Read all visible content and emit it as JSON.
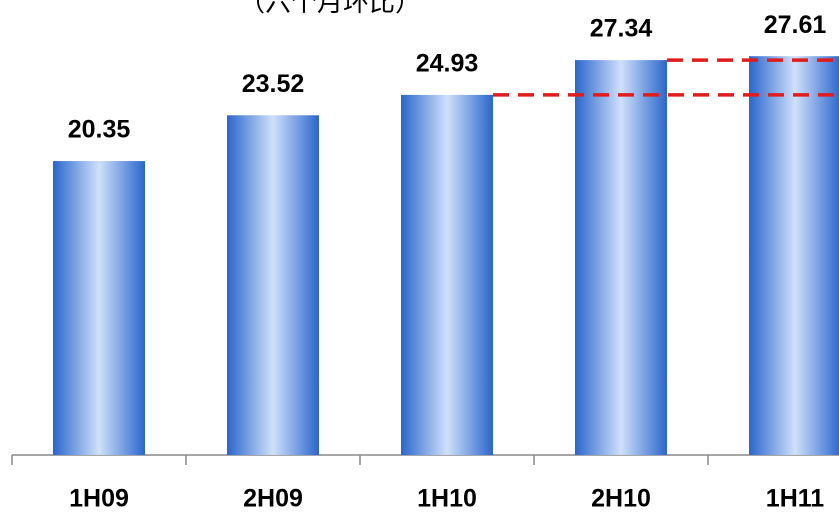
{
  "chart_data": {
    "type": "bar",
    "title": "（六个月环比）",
    "categories": [
      "1H09",
      "2H09",
      "1H10",
      "2H10",
      "1H11"
    ],
    "values": [
      20.35,
      23.52,
      24.93,
      27.34,
      27.61
    ],
    "color": "#2e6fd0",
    "ylim": [
      0,
      31.5
    ]
  }
}
